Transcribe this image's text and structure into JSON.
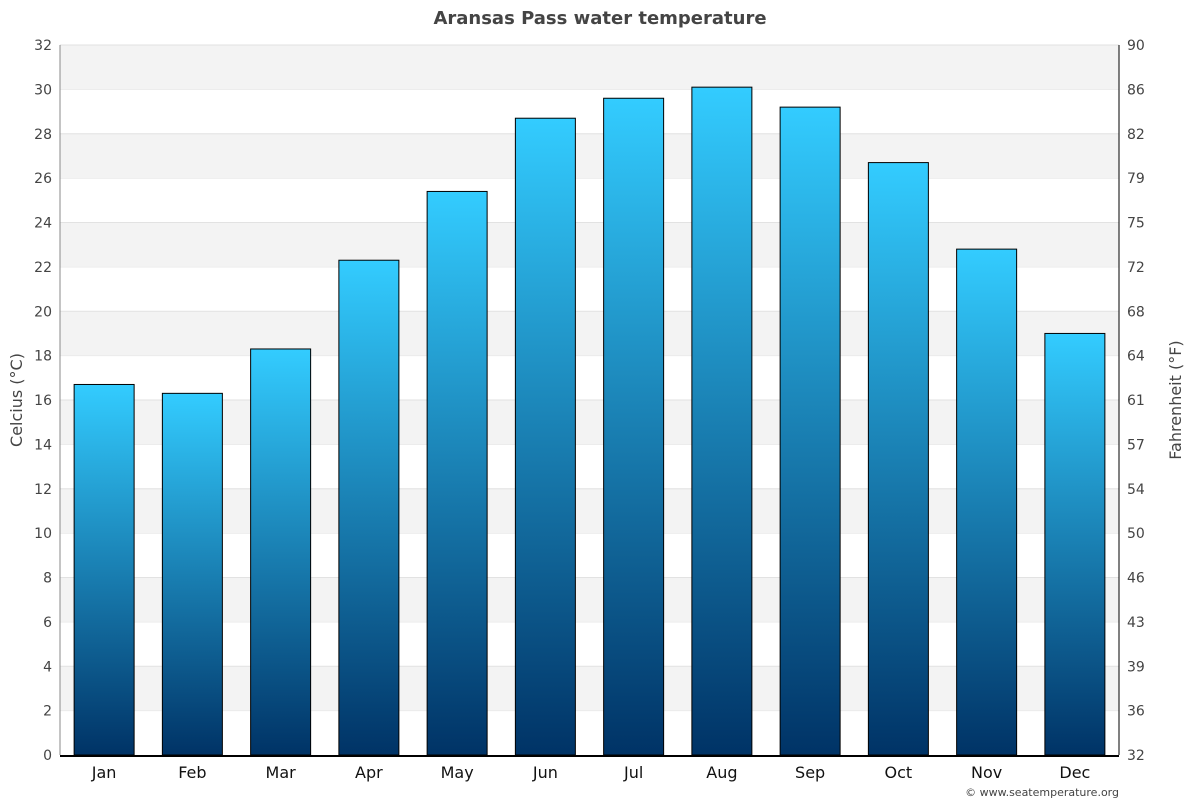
{
  "chart_data": {
    "type": "bar",
    "title": "Aransas Pass water temperature",
    "ylabel": "Celcius (°C)",
    "y2label": "Fahrenheit (°F)",
    "categories": [
      "Jan",
      "Feb",
      "Mar",
      "Apr",
      "May",
      "Jun",
      "Jul",
      "Aug",
      "Sep",
      "Oct",
      "Nov",
      "Dec"
    ],
    "values": [
      16.7,
      16.3,
      18.3,
      22.3,
      25.4,
      28.7,
      29.6,
      30.1,
      29.2,
      26.7,
      22.8,
      19.0
    ],
    "ylim": [
      0,
      32
    ],
    "yticks": [
      0,
      2,
      4,
      6,
      8,
      10,
      12,
      14,
      16,
      18,
      20,
      22,
      24,
      26,
      28,
      30,
      32
    ],
    "y2ticks": [
      "32",
      "36",
      "39",
      "43",
      "46",
      "50",
      "54",
      "57",
      "61",
      "64",
      "68",
      "72",
      "75",
      "79",
      "82",
      "86",
      "90"
    ],
    "grid": true,
    "legend": "none",
    "colors": {
      "bar_top": "#33ccff",
      "bar_bottom": "#003366",
      "band": "#f3f3f3"
    },
    "credit": "© www.seatemperature.org"
  }
}
